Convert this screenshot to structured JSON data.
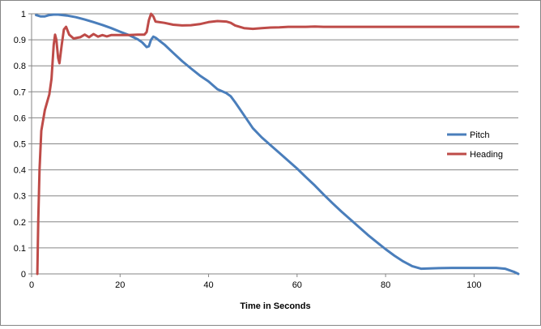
{
  "chart_data": {
    "type": "line",
    "title": "",
    "xlabel": "Time in Seconds",
    "ylabel": "",
    "xlim": [
      0,
      110
    ],
    "ylim": [
      0,
      1
    ],
    "x_ticks": [
      0,
      20,
      40,
      60,
      80,
      100
    ],
    "y_ticks": [
      0,
      0.1,
      0.2,
      0.3,
      0.4,
      0.5,
      0.6,
      0.7,
      0.8,
      0.9,
      1
    ],
    "grid": "horizontal",
    "legend_position": "right",
    "series": [
      {
        "name": "Pitch",
        "color": "#4a7ebb",
        "points": [
          [
            1,
            0.995
          ],
          [
            2,
            0.99
          ],
          [
            3,
            0.99
          ],
          [
            4,
            0.995
          ],
          [
            5,
            0.997
          ],
          [
            6,
            0.997
          ],
          [
            7,
            0.995
          ],
          [
            8,
            0.993
          ],
          [
            10,
            0.987
          ],
          [
            12,
            0.978
          ],
          [
            14,
            0.968
          ],
          [
            16,
            0.957
          ],
          [
            18,
            0.945
          ],
          [
            20,
            0.931
          ],
          [
            22,
            0.918
          ],
          [
            24,
            0.902
          ],
          [
            25,
            0.89
          ],
          [
            26,
            0.872
          ],
          [
            26.5,
            0.875
          ],
          [
            27,
            0.9
          ],
          [
            27.5,
            0.912
          ],
          [
            28,
            0.908
          ],
          [
            30,
            0.882
          ],
          [
            32,
            0.85
          ],
          [
            34,
            0.818
          ],
          [
            36,
            0.79
          ],
          [
            38,
            0.763
          ],
          [
            40,
            0.74
          ],
          [
            42,
            0.71
          ],
          [
            44,
            0.695
          ],
          [
            45,
            0.683
          ],
          [
            46,
            0.66
          ],
          [
            48,
            0.61
          ],
          [
            50,
            0.56
          ],
          [
            52,
            0.525
          ],
          [
            54,
            0.495
          ],
          [
            56,
            0.465
          ],
          [
            58,
            0.435
          ],
          [
            60,
            0.405
          ],
          [
            62,
            0.372
          ],
          [
            64,
            0.34
          ],
          [
            66,
            0.305
          ],
          [
            68,
            0.272
          ],
          [
            70,
            0.24
          ],
          [
            72,
            0.21
          ],
          [
            74,
            0.18
          ],
          [
            76,
            0.15
          ],
          [
            78,
            0.122
          ],
          [
            80,
            0.095
          ],
          [
            82,
            0.07
          ],
          [
            84,
            0.048
          ],
          [
            86,
            0.03
          ],
          [
            88,
            0.02
          ],
          [
            90,
            0.021
          ],
          [
            92,
            0.022
          ],
          [
            95,
            0.023
          ],
          [
            100,
            0.023
          ],
          [
            105,
            0.023
          ],
          [
            107,
            0.02
          ],
          [
            109,
            0.008
          ],
          [
            110,
            0
          ]
        ]
      },
      {
        "name": "Heading",
        "color": "#be4b48",
        "points": [
          [
            1.3,
            0
          ],
          [
            1.5,
            0.2
          ],
          [
            1.8,
            0.4
          ],
          [
            2.2,
            0.55
          ],
          [
            3,
            0.63
          ],
          [
            4,
            0.69
          ],
          [
            4.5,
            0.75
          ],
          [
            5,
            0.88
          ],
          [
            5.3,
            0.92
          ],
          [
            5.6,
            0.9
          ],
          [
            6,
            0.83
          ],
          [
            6.3,
            0.81
          ],
          [
            6.8,
            0.88
          ],
          [
            7.3,
            0.94
          ],
          [
            7.8,
            0.95
          ],
          [
            8.5,
            0.92
          ],
          [
            9.5,
            0.905
          ],
          [
            11,
            0.91
          ],
          [
            12,
            0.92
          ],
          [
            13,
            0.91
          ],
          [
            14,
            0.922
          ],
          [
            15,
            0.912
          ],
          [
            16,
            0.918
          ],
          [
            17,
            0.913
          ],
          [
            18,
            0.918
          ],
          [
            20,
            0.918
          ],
          [
            22,
            0.918
          ],
          [
            24,
            0.92
          ],
          [
            25.5,
            0.92
          ],
          [
            26,
            0.93
          ],
          [
            26.5,
            0.975
          ],
          [
            27,
            1.0
          ],
          [
            27.5,
            0.99
          ],
          [
            28,
            0.97
          ],
          [
            30,
            0.965
          ],
          [
            32,
            0.958
          ],
          [
            34,
            0.955
          ],
          [
            36,
            0.956
          ],
          [
            38,
            0.96
          ],
          [
            40,
            0.968
          ],
          [
            42,
            0.972
          ],
          [
            44,
            0.97
          ],
          [
            45,
            0.965
          ],
          [
            46,
            0.955
          ],
          [
            48,
            0.945
          ],
          [
            50,
            0.942
          ],
          [
            52,
            0.945
          ],
          [
            54,
            0.947
          ],
          [
            56,
            0.948
          ],
          [
            58,
            0.95
          ],
          [
            60,
            0.95
          ],
          [
            62,
            0.95
          ],
          [
            64,
            0.951
          ],
          [
            66,
            0.95
          ],
          [
            70,
            0.95
          ],
          [
            80,
            0.95
          ],
          [
            90,
            0.95
          ],
          [
            100,
            0.95
          ],
          [
            110,
            0.95
          ]
        ]
      }
    ]
  }
}
